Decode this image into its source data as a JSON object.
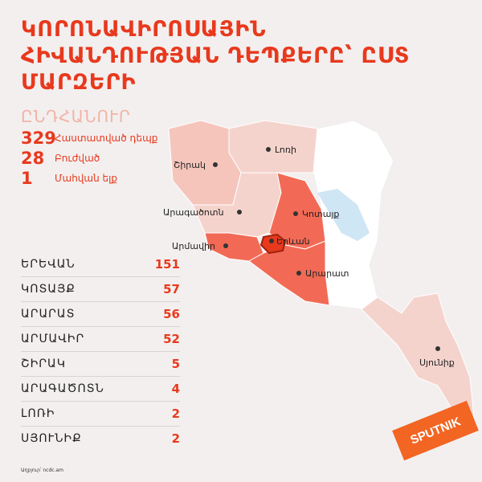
{
  "title": "ԿՈՐՈՆԱՎԻՐՈՍԱՅԻՆ ՀԻՎԱՆԴՈՒԹՅԱՆ ԴԵՊՔԵՐԸ՝ ԸՍՏ ՄԱՐԶԵՐԻ",
  "total": {
    "heading": "ԸՆԴՀԱՆՈՒՐ",
    "stats": [
      {
        "value": "329",
        "label": "Հաստատված դեպք"
      },
      {
        "value": "28",
        "label": "Բուժված"
      },
      {
        "value": "1",
        "label": "Մահվան ելք"
      }
    ]
  },
  "regions": [
    {
      "name": "ԵՐԵՎԱՆ",
      "value": "151"
    },
    {
      "name": "ԿՈՏԱՅՔ",
      "value": "57"
    },
    {
      "name": "ԱՐԱՐԱՏ",
      "value": "56"
    },
    {
      "name": "ԱՐՄԱՎԻՐ",
      "value": "52"
    },
    {
      "name": "ՇԻՐԱԿ",
      "value": "5"
    },
    {
      "name": "ԱՐԱԳԱԾՈՏՆ",
      "value": "4"
    },
    {
      "name": "ԼՈՌԻ",
      "value": "2"
    },
    {
      "name": "ՍՅՈՒՆԻՔ",
      "value": "2"
    }
  ],
  "map_labels": {
    "lori": "Լոռի",
    "shirak": "Շիրակ",
    "aragatsotn": "Արագածոտն",
    "kotayk": "Կոտայք",
    "armavir": "Արմավիր",
    "yerevan": "Երևան",
    "ararat": "Արարատ",
    "syunik": "Սյունիք"
  },
  "colors": {
    "accent": "#e8391d",
    "high": "#f26a55",
    "low": "#f5d3cd",
    "lake": "#cfe6f5"
  },
  "source": "Աղբյուր՝ ncdc.am",
  "logo": "SPUTNIK"
}
